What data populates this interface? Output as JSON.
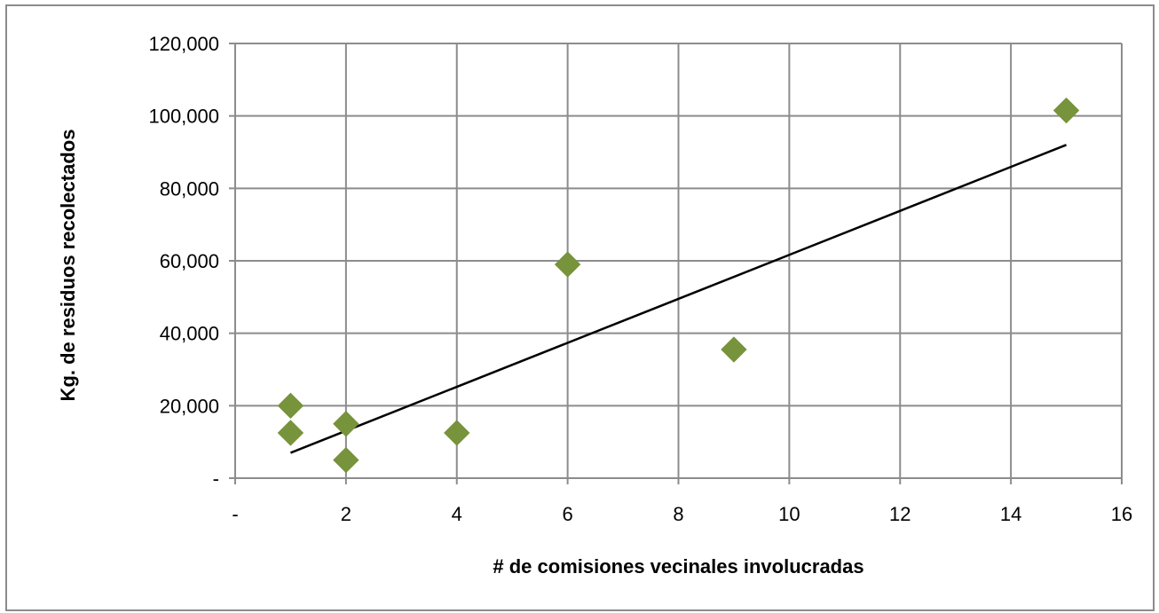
{
  "chart_data": {
    "type": "scatter",
    "title": "",
    "xlabel": "# de comisiones vecinales involucradas",
    "ylabel": "Kg. de residuos recolectados",
    "xlim": [
      0,
      16
    ],
    "ylim": [
      0,
      120000
    ],
    "x_ticks": [
      {
        "value": 0,
        "label": "-"
      },
      {
        "value": 2,
        "label": "2"
      },
      {
        "value": 4,
        "label": "4"
      },
      {
        "value": 6,
        "label": "6"
      },
      {
        "value": 8,
        "label": "8"
      },
      {
        "value": 10,
        "label": "10"
      },
      {
        "value": 12,
        "label": "12"
      },
      {
        "value": 14,
        "label": "14"
      },
      {
        "value": 16,
        "label": "16"
      }
    ],
    "y_ticks": [
      {
        "value": 0,
        "label": "-"
      },
      {
        "value": 20000,
        "label": "20,000"
      },
      {
        "value": 40000,
        "label": "40,000"
      },
      {
        "value": 60000,
        "label": "60,000"
      },
      {
        "value": 80000,
        "label": "80,000"
      },
      {
        "value": 100000,
        "label": "100,000"
      },
      {
        "value": 120000,
        "label": "120,000"
      }
    ],
    "grid": true,
    "legend": "none",
    "series": [
      {
        "marker": "diamond",
        "color": "#77933c",
        "points": [
          {
            "x": 1,
            "y": 20000
          },
          {
            "x": 1,
            "y": 12500
          },
          {
            "x": 2,
            "y": 15000
          },
          {
            "x": 2,
            "y": 5000
          },
          {
            "x": 4,
            "y": 12500
          },
          {
            "x": 6,
            "y": 59000
          },
          {
            "x": 9,
            "y": 35500
          },
          {
            "x": 15,
            "y": 101500
          }
        ]
      }
    ],
    "trendline": {
      "type": "linear",
      "color": "#000000",
      "from": {
        "x": 1,
        "y": 7000
      },
      "to": {
        "x": 15,
        "y": 92000
      }
    },
    "colors": {
      "grid": "#8c8c8c",
      "frame": "#8c8c8c"
    }
  }
}
